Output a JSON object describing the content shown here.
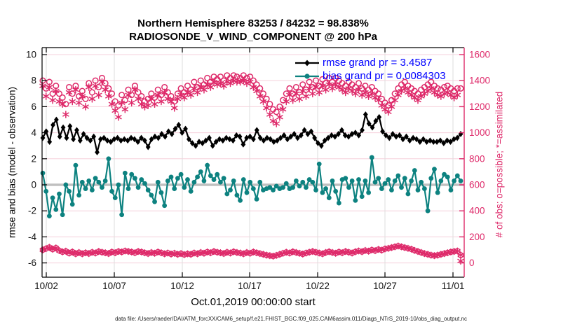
{
  "title": {
    "line1": "Northern Hemisphere 83253 / 84232 = 98.838%",
    "line2": "RADIOSONDE_V_WIND_COMPONENT @ 200 hPa"
  },
  "legend": {
    "rmse_label": "rmse grand pr = 3.4587",
    "bias_label": "bias grand pr = 0.0084303"
  },
  "footer": {
    "data_file": "data file: /Users/raeder/DAI/ATM_forcXX/CAM6_setup/f.e21.FHIST_BGC.f09_025.CAM6assim.011/Diags_NTrS_2019-10/obs_diag_output.nc"
  },
  "colors": {
    "rmse": "#000000",
    "bias": "#0d8280",
    "obs_pink": "#de2a6a",
    "legend_text": "#0000ff",
    "grid_pink": "#f6d0dc",
    "grid_gray": "#dedede",
    "zero_line": "#c0c0c0",
    "tick_text": "#111111"
  },
  "chart_data": {
    "type": "line",
    "title": "Northern Hemisphere 83253 / 84232 = 98.838%",
    "subtitle": "RADIOSONDE_V_WIND_COMPONENT @ 200 hPa",
    "xlabel": "Oct.01,2019 00:00:00 start",
    "ylabel_left": "rmse and bias (model - observation)",
    "ylabel_right": "# of obs: o=possible; *=assimilated",
    "ylim_left": [
      -6,
      10
    ],
    "ylim_right": [
      0,
      1600
    ],
    "grid": true,
    "legend_position": "top-right-inside",
    "yticks_left": [
      10,
      8,
      6,
      4,
      2,
      0,
      -2,
      -4,
      -6
    ],
    "yticks_right": [
      1600,
      1400,
      1200,
      1000,
      800,
      600,
      400,
      200,
      0
    ],
    "xticks": [
      "10/02",
      "10/07",
      "10/12",
      "10/17",
      "10/22",
      "10/27",
      "11/01"
    ],
    "time_span": "Oct 1 2019 - Nov 1 2019, 4 analysis times per day",
    "series": [
      {
        "name": "rmse",
        "axis": "left",
        "marker": "diamond",
        "line": true,
        "grand_value": 3.4587,
        "values": [
          3.6,
          4.1,
          3.3,
          4.6,
          5.0,
          3.7,
          4.4,
          3.6,
          4.5,
          3.5,
          4.2,
          3.4,
          3.9,
          3.6,
          3.4,
          3.7,
          2.5,
          3.5,
          3.6,
          3.4,
          3.3,
          3.5,
          3.6,
          3.4,
          3.5,
          3.4,
          3.6,
          3.5,
          3.3,
          3.6,
          3.4,
          2.9,
          3.5,
          3.7,
          3.6,
          3.9,
          3.7,
          4.1,
          3.9,
          4.3,
          4.6,
          4.0,
          4.3,
          3.5,
          3.2,
          3.0,
          3.3,
          3.2,
          3.4,
          3.6,
          3.0,
          3.3,
          3.5,
          3.4,
          3.6,
          3.5,
          3.4,
          3.8,
          3.7,
          3.1,
          3.6,
          3.7,
          3.5,
          4.2,
          3.6,
          3.4,
          3.6,
          3.5,
          3.3,
          3.4,
          3.6,
          3.8,
          3.5,
          3.7,
          3.9,
          3.6,
          3.8,
          4.2,
          3.9,
          4.1,
          3.6,
          3.2,
          3.0,
          3.4,
          3.6,
          3.8,
          3.7,
          3.9,
          4.2,
          3.8,
          3.7,
          3.9,
          4.0,
          3.8,
          4.2,
          5.4,
          4.7,
          4.4,
          4.9,
          5.2,
          4.1,
          3.8,
          3.6,
          3.9,
          3.7,
          3.8,
          3.5,
          3.7,
          3.4,
          3.6,
          3.5,
          3.3,
          3.5,
          3.3,
          3.4,
          3.3,
          3.3,
          3.4,
          3.2,
          3.4,
          3.3,
          3.5,
          3.6,
          3.9
        ]
      },
      {
        "name": "bias",
        "axis": "left",
        "marker": "circle",
        "line": true,
        "grand_value": 0.0084303,
        "values": [
          0.9,
          -0.5,
          -2.4,
          -1.0,
          -1.9,
          -0.7,
          -2.3,
          0.0,
          -0.5,
          -1.5,
          1.5,
          -0.8,
          0.2,
          -0.3,
          0.3,
          -0.4,
          0.5,
          0.2,
          -0.2,
          0.3,
          2.0,
          -0.5,
          -1.0,
          0.0,
          -2.3,
          0.9,
          -0.3,
          0.8,
          0.5,
          -0.2,
          0.4,
          0.1,
          -0.4,
          -0.8,
          -1.3,
          0.2,
          -0.6,
          -1.6,
          0.3,
          0.6,
          -0.3,
          0.5,
          0.8,
          -0.2,
          0.4,
          -0.5,
          0.2,
          0.6,
          1.0,
          0.3,
          1.5,
          0.7,
          0.4,
          0.8,
          0.2,
          0.5,
          -0.7,
          -0.4,
          0.3,
          -0.8,
          -1.2,
          0.4,
          -0.6,
          0.2,
          -0.3,
          -1.1,
          0.2,
          -0.4,
          -0.3,
          -0.2,
          -0.4,
          -0.1,
          -0.3,
          -0.2,
          0.1,
          -0.3,
          -0.2,
          0.3,
          -0.1,
          0.2,
          -0.2,
          0.4,
          0.2,
          -0.4,
          1.6,
          -0.6,
          -0.3,
          -1.0,
          0.3,
          -0.5,
          -1.4,
          0.4,
          0.5,
          -0.2,
          0.3,
          -1.2,
          0.4,
          -0.9,
          0.3,
          -0.6,
          2.1,
          0.2,
          0.5,
          -0.3,
          0.1,
          0.4,
          -0.4,
          0.3,
          0.7,
          -0.2,
          0.5,
          -0.7,
          0.3,
          1.1,
          -0.4,
          0.2,
          -0.3,
          -2.0,
          0.5,
          1.2,
          -0.6,
          0.3,
          0.8,
          0.6,
          -0.4,
          0.3,
          0.7,
          0.3
        ]
      },
      {
        "name": "n_possible",
        "axis": "right",
        "marker": "circle-open",
        "line": false,
        "values": [
          1400,
          1340,
          1390,
          1300,
          1360,
          1300,
          1270,
          1220,
          1350,
          1300,
          1360,
          1280,
          1320,
          1260,
          1380,
          1310,
          1400,
          1350,
          1420,
          1380,
          1340,
          1300,
          1240,
          1210,
          1290,
          1250,
          1330,
          1290,
          1360,
          1310,
          1280,
          1240,
          1260,
          1300,
          1270,
          1330,
          1290,
          1350,
          1310,
          1280,
          1240,
          1300,
          1340,
          1310,
          1360,
          1330,
          1390,
          1350,
          1400,
          1370,
          1420,
          1390,
          1430,
          1410,
          1430,
          1400,
          1440,
          1420,
          1440,
          1430,
          1420,
          1440,
          1420,
          1430,
          1400,
          1370,
          1340,
          1300,
          1260,
          1220,
          1180,
          1160,
          1200,
          1250,
          1300,
          1340,
          1300,
          1350,
          1310,
          1370,
          1330,
          1390,
          1350,
          1400,
          1360,
          1410,
          1380,
          1420,
          1390,
          1420,
          1400,
          1380,
          1360,
          1390,
          1370,
          1350,
          1380,
          1340,
          1360,
          1330,
          1350,
          1320,
          1300,
          1260,
          1230,
          1210,
          1250,
          1300,
          1340,
          1370,
          1390,
          1360,
          1340,
          1320,
          1300,
          1330,
          1350,
          1370,
          1390,
          1360,
          1340,
          1330,
          1350,
          1360,
          1340,
          1320,
          1340,
          1340
        ]
      },
      {
        "name": "n_assimilated",
        "axis": "right",
        "marker": "asterisk",
        "line": false,
        "values": [
          1360,
          1280,
          1350,
          1250,
          1320,
          1240,
          1220,
          1140,
          1310,
          1240,
          1330,
          1230,
          1280,
          1200,
          1350,
          1260,
          1360,
          1290,
          1390,
          1330,
          1280,
          1220,
          1170,
          1120,
          1230,
          1180,
          1290,
          1230,
          1330,
          1260,
          1220,
          1200,
          1210,
          1260,
          1220,
          1290,
          1240,
          1310,
          1260,
          1240,
          1190,
          1260,
          1290,
          1270,
          1310,
          1290,
          1340,
          1310,
          1350,
          1330,
          1370,
          1350,
          1390,
          1370,
          1380,
          1360,
          1390,
          1380,
          1400,
          1390,
          1390,
          1400,
          1380,
          1390,
          1350,
          1320,
          1280,
          1240,
          1190,
          1140,
          1090,
          1070,
          1120,
          1180,
          1240,
          1290,
          1250,
          1300,
          1260,
          1320,
          1280,
          1340,
          1300,
          1350,
          1310,
          1360,
          1330,
          1370,
          1340,
          1370,
          1350,
          1330,
          1310,
          1340,
          1320,
          1300,
          1330,
          1290,
          1310,
          1280,
          1300,
          1270,
          1250,
          1210,
          1180,
          1160,
          1200,
          1250,
          1290,
          1320,
          1340,
          1310,
          1290,
          1270,
          1250,
          1280,
          1300,
          1320,
          1340,
          1310,
          1290,
          1280,
          1300,
          1310,
          1290,
          1270,
          1290,
          15
        ]
      },
      {
        "name": "n_bottom_cluster",
        "axis": "right",
        "marker": "circle-asterisk",
        "line": false,
        "values": [
          100,
          110,
          120,
          105,
          115,
          95,
          85,
          90,
          75,
          85,
          70,
          80,
          70,
          78,
          72,
          82,
          76,
          88,
          82,
          78,
          72,
          84,
          78,
          88,
          84,
          92,
          88,
          84,
          78,
          88,
          84,
          78,
          72,
          80,
          74,
          84,
          78,
          70,
          76,
          68,
          74,
          66,
          72,
          64,
          70,
          66,
          76,
          70,
          80,
          74,
          84,
          78,
          88,
          82,
          78,
          72,
          82,
          76,
          86,
          80,
          76,
          70,
          80,
          74,
          84,
          78,
          72,
          66,
          60,
          56,
          52,
          58,
          66,
          74,
          82,
          76,
          86,
          80,
          74,
          68,
          76,
          82,
          88,
          82,
          76,
          70,
          80,
          86,
          80,
          74,
          84,
          78,
          88,
          82,
          76,
          86,
          92,
          86,
          96,
          90,
          100,
          94,
          104,
          98,
          108,
          112,
          118,
          124,
          130,
          124,
          118,
          112,
          106,
          96,
          88,
          80,
          72,
          66,
          60,
          56,
          60,
          66,
          72,
          78,
          84,
          88,
          92,
          60
        ]
      }
    ]
  }
}
